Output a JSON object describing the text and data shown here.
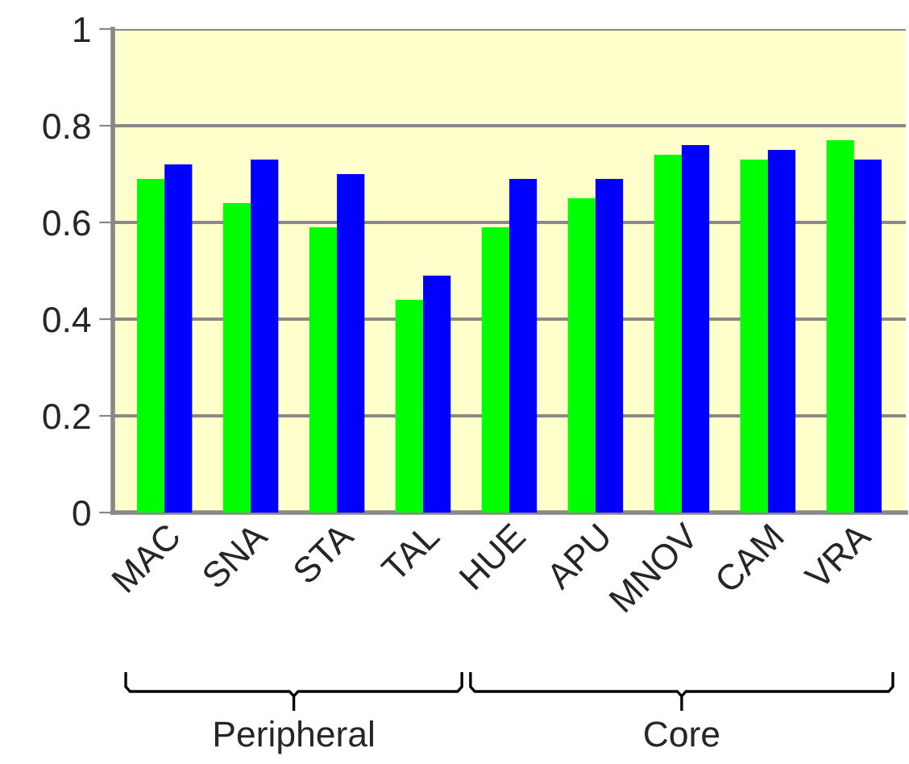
{
  "chart_data": {
    "type": "bar",
    "categories": [
      "MAC",
      "SNA",
      "STA",
      "TAL",
      "HUE",
      "APU",
      "MNOV",
      "CAM",
      "VRA"
    ],
    "series": [
      {
        "color": "#00ff00",
        "values": [
          0.69,
          0.64,
          0.59,
          0.44,
          0.59,
          0.65,
          0.74,
          0.73,
          0.77
        ]
      },
      {
        "color": "#0000ff",
        "values": [
          0.72,
          0.73,
          0.7,
          0.49,
          0.69,
          0.69,
          0.76,
          0.75,
          0.73
        ]
      }
    ],
    "ylim": [
      0,
      1
    ],
    "yticks": [
      0,
      0.2,
      0.4,
      0.6,
      0.8,
      1
    ],
    "grid": "y",
    "legend": false,
    "annotations": [
      "Peripheral",
      "Core"
    ]
  }
}
